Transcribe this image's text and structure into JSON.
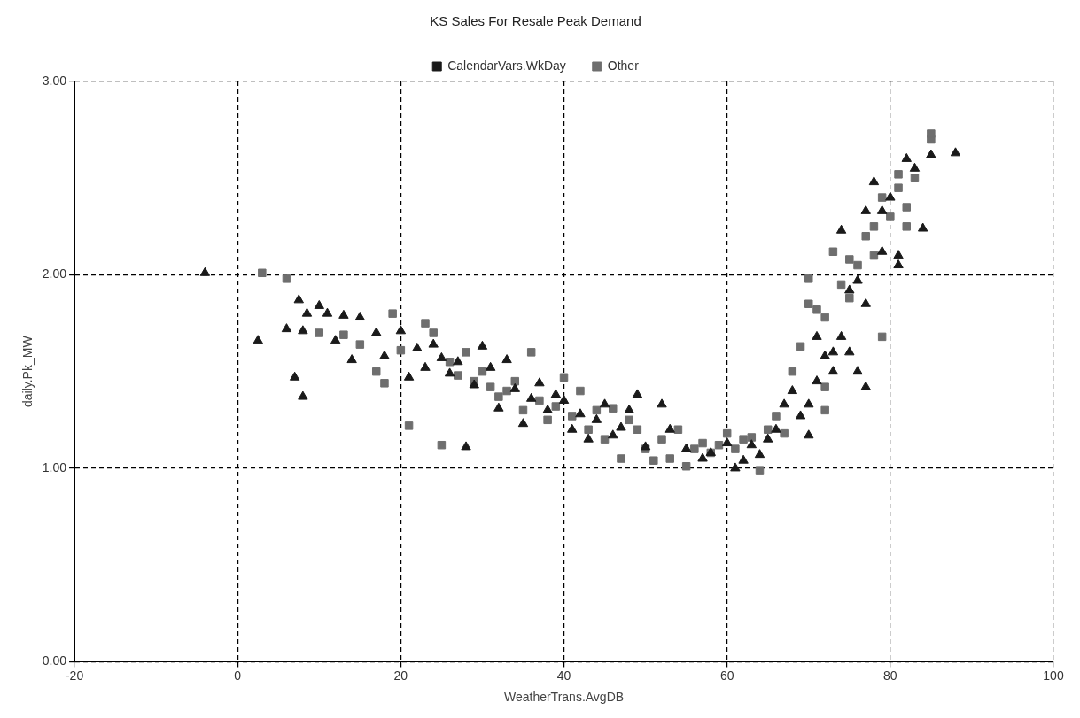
{
  "chart_data": {
    "type": "scatter",
    "title": "KS Sales For Resale Peak Demand",
    "xlabel": "WeatherTrans.AvgDB",
    "ylabel": "daily.Pk_MW",
    "xlim": [
      -20,
      100
    ],
    "xticks": [
      -20,
      0,
      20,
      40,
      60,
      80,
      100
    ],
    "ylim": [
      0,
      3
    ],
    "yticks": [
      {
        "value": 0,
        "label": "0.00"
      },
      {
        "value": 1,
        "label": "1.00"
      },
      {
        "value": 2,
        "label": "2.00"
      },
      {
        "value": 3,
        "label": "3.00"
      }
    ],
    "grid": true,
    "legend": "top",
    "series": [
      {
        "name": "CalendarVars.WkDay",
        "color": "#1a1a1a",
        "marker": "triangle",
        "x": [
          -4,
          2.5,
          7,
          8,
          6,
          7.5,
          8.5,
          8,
          10,
          11,
          13,
          15,
          12,
          14,
          17,
          18,
          20,
          21,
          22,
          24,
          25,
          26,
          27,
          28,
          29,
          30,
          31,
          32,
          33,
          34,
          35,
          36,
          37,
          38,
          40,
          41,
          42,
          43,
          44,
          45,
          46,
          47,
          49,
          50,
          52,
          53,
          55,
          57,
          58,
          60,
          61,
          62,
          64,
          65,
          66,
          67,
          68,
          69,
          70,
          70,
          71,
          71,
          72,
          73,
          73,
          74,
          74,
          75,
          75,
          76,
          76,
          77,
          77,
          77,
          78,
          79,
          80,
          81,
          81,
          82,
          83,
          84,
          85,
          88,
          79,
          63,
          48,
          39,
          23
        ],
        "values": [
          2.01,
          1.66,
          1.47,
          1.37,
          1.72,
          1.87,
          1.8,
          1.71,
          1.84,
          1.8,
          1.79,
          1.78,
          1.66,
          1.56,
          1.7,
          1.58,
          1.71,
          1.47,
          1.62,
          1.64,
          1.57,
          1.49,
          1.55,
          1.11,
          1.43,
          1.63,
          1.52,
          1.31,
          1.56,
          1.41,
          1.23,
          1.36,
          1.44,
          1.3,
          1.35,
          1.2,
          1.28,
          1.15,
          1.25,
          1.33,
          1.17,
          1.21,
          1.38,
          1.11,
          1.33,
          1.2,
          1.1,
          1.05,
          1.08,
          1.13,
          1,
          1.04,
          1.07,
          1.15,
          1.2,
          1.33,
          1.4,
          1.27,
          1.17,
          1.33,
          1.45,
          1.68,
          1.58,
          1.5,
          1.6,
          1.68,
          2.23,
          1.92,
          1.6,
          1.5,
          1.97,
          1.42,
          1.85,
          2.33,
          2.48,
          2.33,
          2.4,
          2.1,
          2.05,
          2.6,
          2.55,
          2.24,
          2.62,
          2.63,
          2.12,
          1.12,
          1.3,
          1.38,
          1.52
        ]
      },
      {
        "name": "Other",
        "color": "#6e6e6e",
        "marker": "square",
        "x": [
          3,
          6,
          10,
          13,
          19,
          17,
          20,
          21,
          23,
          24,
          25,
          26,
          28,
          29,
          30,
          31,
          33,
          34,
          36,
          35,
          37,
          38,
          39,
          40,
          41,
          42,
          43,
          44,
          45,
          46,
          47,
          48,
          49,
          50,
          51,
          52,
          53,
          54,
          55,
          56,
          57,
          58,
          59,
          60,
          61,
          62,
          63,
          64,
          65,
          66,
          67,
          68,
          69,
          70,
          70,
          71,
          72,
          72,
          72,
          73,
          74,
          75,
          75,
          76,
          77,
          78,
          78,
          79,
          79,
          80,
          81,
          81,
          82,
          82,
          83,
          85,
          85,
          32,
          27,
          18,
          15
        ],
        "values": [
          2.01,
          1.98,
          1.7,
          1.69,
          1.8,
          1.5,
          1.61,
          1.22,
          1.75,
          1.7,
          1.12,
          1.55,
          1.6,
          1.45,
          1.5,
          1.42,
          1.4,
          1.45,
          1.6,
          1.3,
          1.35,
          1.25,
          1.32,
          1.47,
          1.27,
          1.4,
          1.2,
          1.3,
          1.15,
          1.31,
          1.05,
          1.25,
          1.2,
          1.1,
          1.04,
          1.15,
          1.05,
          1.2,
          1.01,
          1.1,
          1.13,
          1.08,
          1.12,
          1.18,
          1.1,
          1.15,
          1.16,
          0.99,
          1.2,
          1.27,
          1.18,
          1.5,
          1.63,
          1.85,
          1.98,
          1.82,
          1.42,
          1.3,
          1.78,
          2.12,
          1.95,
          1.88,
          2.08,
          2.05,
          2.2,
          2.25,
          2.1,
          1.68,
          2.4,
          2.3,
          2.52,
          2.45,
          2.35,
          2.25,
          2.5,
          2.7,
          2.73,
          1.37,
          1.48,
          1.44,
          1.64
        ]
      }
    ]
  }
}
